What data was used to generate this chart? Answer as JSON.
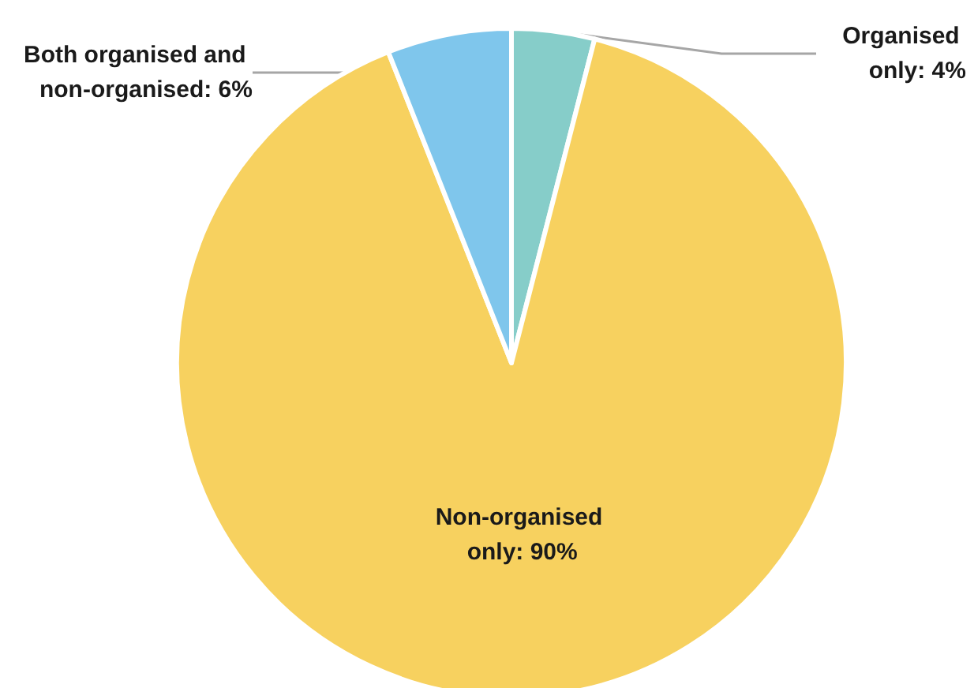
{
  "chart_data": {
    "type": "pie",
    "categories": [
      "Organised only",
      "Non-organised only",
      "Both organised and non-organised"
    ],
    "values": [
      4,
      90,
      6
    ],
    "value_labels": [
      "4%",
      "90%",
      "6%"
    ],
    "colors": [
      "#86cdc9",
      "#f7d15f",
      "#7fc6ec"
    ]
  }
}
